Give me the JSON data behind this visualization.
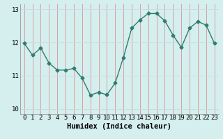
{
  "x": [
    0,
    1,
    2,
    3,
    4,
    5,
    6,
    7,
    8,
    9,
    10,
    11,
    12,
    13,
    14,
    15,
    16,
    17,
    18,
    19,
    20,
    21,
    22,
    23
  ],
  "y": [
    11.97,
    11.62,
    11.83,
    11.38,
    11.17,
    11.17,
    11.22,
    10.93,
    10.42,
    10.5,
    10.43,
    10.78,
    11.55,
    12.43,
    12.68,
    12.87,
    12.87,
    12.65,
    12.22,
    11.85,
    12.43,
    12.63,
    12.52,
    11.97
  ],
  "line_color": "#2e7d6e",
  "marker": "D",
  "marker_size": 2.5,
  "linewidth": 1.0,
  "bg_color": "#d5eeee",
  "grid_color_v": "#d9a0a0",
  "grid_color_h": "#c8dede",
  "xlabel": "Humidex (Indice chaleur)",
  "xlabel_fontsize": 7.5,
  "xlabel_fontweight": "bold",
  "yticks": [
    10,
    11,
    12,
    13
  ],
  "xtick_labels": [
    "0",
    "1",
    "2",
    "3",
    "4",
    "5",
    "6",
    "7",
    "8",
    "9",
    "10",
    "11",
    "12",
    "13",
    "14",
    "15",
    "16",
    "17",
    "18",
    "19",
    "20",
    "21",
    "22",
    "23"
  ],
  "ylim": [
    9.85,
    13.15
  ],
  "xlim": [
    -0.5,
    23.5
  ],
  "tick_fontsize": 6.5,
  "fig_width": 3.2,
  "fig_height": 2.0,
  "dpi": 100
}
